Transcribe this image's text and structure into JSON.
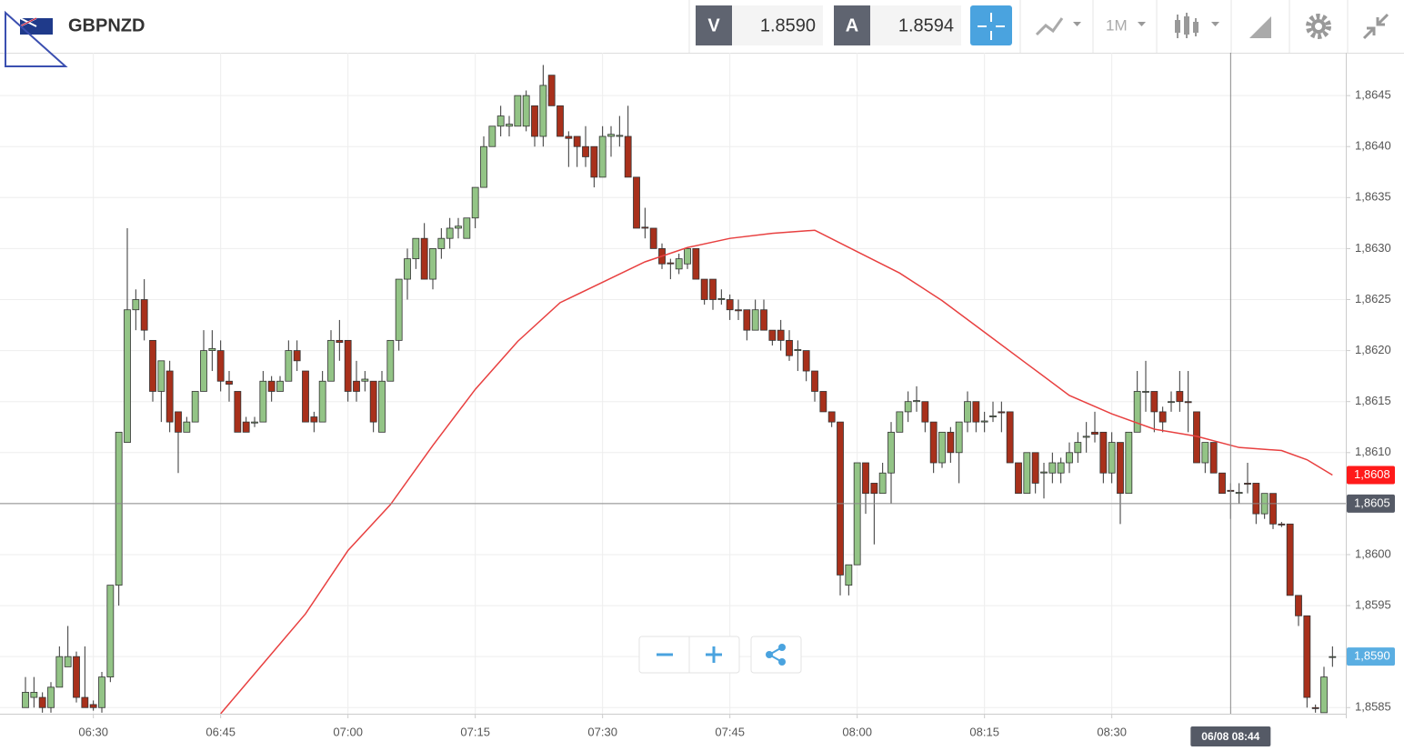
{
  "toolbar": {
    "symbol": "GBPNZD",
    "bid_label": "V",
    "bid": "1.8590",
    "ask_label": "A",
    "ask": "1.8594",
    "timeframe": "1M"
  },
  "chart_data": {
    "type": "candlestick",
    "x": [
      "06:22",
      "06:23",
      "06:24",
      "06:25",
      "06:26",
      "06:27",
      "06:28",
      "06:29",
      "06:30",
      "06:31",
      "06:32",
      "06:33",
      "06:34",
      "06:35",
      "06:36",
      "06:37",
      "06:38",
      "06:39",
      "06:40",
      "06:41",
      "06:42",
      "06:43",
      "06:44",
      "06:45",
      "06:46",
      "06:47",
      "06:48",
      "06:49",
      "06:50",
      "06:51",
      "06:52",
      "06:53",
      "06:54",
      "06:55",
      "06:56",
      "06:57",
      "06:58",
      "06:59",
      "07:00",
      "07:01",
      "07:02",
      "07:03",
      "07:04",
      "07:05",
      "07:06",
      "07:07",
      "07:08",
      "07:09",
      "07:10",
      "07:11",
      "07:12",
      "07:13",
      "07:14",
      "07:15",
      "07:16",
      "07:17",
      "07:18",
      "07:19",
      "07:20",
      "07:21",
      "07:22",
      "07:23",
      "07:24",
      "07:25",
      "07:26",
      "07:27",
      "07:28",
      "07:29",
      "07:30",
      "07:31",
      "07:32",
      "07:33",
      "07:34",
      "07:35",
      "07:36",
      "07:37",
      "07:38",
      "07:39",
      "07:40",
      "07:41",
      "07:42",
      "07:43",
      "07:44",
      "07:45",
      "07:46",
      "07:47",
      "07:48",
      "07:49",
      "07:50",
      "07:51",
      "07:52",
      "07:53",
      "07:54",
      "07:55",
      "07:56",
      "07:57",
      "07:58",
      "07:59",
      "08:00",
      "08:01",
      "08:02",
      "08:03",
      "08:04",
      "08:05",
      "08:06",
      "08:07",
      "08:08",
      "08:09",
      "08:10",
      "08:11",
      "08:12",
      "08:13",
      "08:14",
      "08:15",
      "08:16",
      "08:17",
      "08:18",
      "08:19",
      "08:20",
      "08:21",
      "08:22",
      "08:23",
      "08:24",
      "08:25",
      "08:26",
      "08:27",
      "08:28",
      "08:29",
      "08:30",
      "08:31",
      "08:32",
      "08:33",
      "08:34",
      "08:35",
      "08:36",
      "08:37",
      "08:38",
      "08:39",
      "08:40",
      "08:41",
      "08:42",
      "08:43",
      "08:44",
      "08:45",
      "08:46",
      "08:47",
      "08:48",
      "08:49",
      "08:50",
      "08:51",
      "08:52",
      "08:53",
      "08:54",
      "08:55",
      "08:56"
    ],
    "open": [
      1.8585,
      1.8586,
      1.8586,
      1.8585,
      1.8587,
      1.8589,
      1.859,
      1.8586,
      1.85853,
      1.8585,
      1.8588,
      1.8597,
      1.8611,
      1.8624,
      1.8625,
      1.8621,
      1.8616,
      1.8618,
      1.8614,
      1.8612,
      1.8613,
      1.8616,
      1.862,
      1.862,
      1.8617,
      1.8616,
      1.8613,
      1.86129,
      1.8613,
      1.8617,
      1.8616,
      1.8617,
      1.862,
      1.8618,
      1.86135,
      1.8613,
      1.8617,
      1.8621,
      1.8621,
      1.8617,
      1.8617,
      1.8617,
      1.8612,
      1.8617,
      1.8621,
      1.8627,
      1.8629,
      1.8631,
      1.8627,
      1.863,
      1.8631,
      1.8632,
      1.8631,
      1.8633,
      1.8636,
      1.864,
      1.8642,
      1.8642,
      1.8642,
      1.8642,
      1.8644,
      1.8641,
      1.8647,
      1.8644,
      1.8641,
      1.8641,
      1.864,
      1.864,
      1.8637,
      1.8641,
      1.8641,
      1.8641,
      1.8637,
      1.86321,
      1.8632,
      1.863,
      1.86286,
      1.8628,
      1.86285,
      1.863,
      1.8627,
      1.8627,
      1.8625,
      1.8625,
      1.8624,
      1.8624,
      1.8622,
      1.8624,
      1.8622,
      1.8622,
      1.8621,
      1.862,
      1.862,
      1.8618,
      1.8616,
      1.8614,
      1.8613,
      1.8597,
      1.8599,
      1.8609,
      1.8607,
      1.8606,
      1.8608,
      1.8612,
      1.8614,
      1.8615,
      1.8615,
      1.8613,
      1.8609,
      1.8612,
      1.861,
      1.8613,
      1.8615,
      1.8613,
      1.86135,
      1.8614,
      1.8614,
      1.8609,
      1.8606,
      1.861,
      1.8608,
      1.8608,
      1.8608,
      1.8609,
      1.861,
      1.86115,
      1.8612,
      1.8612,
      1.8608,
      1.8611,
      1.8606,
      1.8612,
      1.8616,
      1.8616,
      1.8614,
      1.8615,
      1.8616,
      1.8615,
      1.8614,
      1.8609,
      1.8611,
      1.8608,
      1.86063,
      1.8606,
      1.8607,
      1.8607,
      1.8604,
      1.8606,
      1.8603,
      1.8603,
      1.8596,
      1.8594,
      1.8585,
      1.85845,
      1.859
    ],
    "high": [
      1.8588,
      1.8588,
      1.85865,
      1.85875,
      1.8591,
      1.8593,
      1.85905,
      1.8591,
      1.85857,
      1.85885,
      1.8597,
      1.8612,
      1.8632,
      1.8626,
      1.8627,
      1.8621,
      1.8619,
      1.8619,
      1.8614,
      1.86135,
      1.8616,
      1.8622,
      1.8622,
      1.8621,
      1.8618,
      1.8616,
      1.86135,
      1.86135,
      1.8618,
      1.86175,
      1.86175,
      1.8621,
      1.8621,
      1.8618,
      1.8614,
      1.8618,
      1.8622,
      1.8623,
      1.8621,
      1.8619,
      1.8618,
      1.8617,
      1.8618,
      1.8621,
      1.8627,
      1.863,
      1.8631,
      1.86325,
      1.863,
      1.8632,
      1.8633,
      1.8633,
      1.8633,
      1.8636,
      1.8641,
      1.8642,
      1.8644,
      1.8643,
      1.8645,
      1.86455,
      1.8644,
      1.8648,
      1.8647,
      1.8644,
      1.86415,
      1.8641,
      1.8642,
      1.864,
      1.8642,
      1.8642,
      1.8643,
      1.8644,
      1.8637,
      1.8634,
      1.8632,
      1.86305,
      1.8629,
      1.86295,
      1.863,
      1.863,
      1.8627,
      1.8627,
      1.8626,
      1.86255,
      1.8625,
      1.8624,
      1.8625,
      1.8625,
      1.8622,
      1.8623,
      1.8622,
      1.8621,
      1.862,
      1.8618,
      1.8616,
      1.8614,
      1.8613,
      1.8599,
      1.8609,
      1.8609,
      1.8607,
      1.8609,
      1.8613,
      1.8614,
      1.8616,
      1.86165,
      1.8615,
      1.8613,
      1.8612,
      1.86125,
      1.8613,
      1.8616,
      1.8615,
      1.8614,
      1.8615,
      1.8615,
      1.8614,
      1.8609,
      1.861,
      1.861,
      1.8609,
      1.861,
      1.86095,
      1.8611,
      1.8612,
      1.8613,
      1.8614,
      1.8612,
      1.8612,
      1.8611,
      1.8612,
      1.8618,
      1.8619,
      1.8616,
      1.86145,
      1.8616,
      1.8618,
      1.8618,
      1.8614,
      1.8611,
      1.8611,
      1.8608,
      1.8607,
      1.8607,
      1.8609,
      1.8607,
      1.8606,
      1.8606,
      1.86032,
      1.8603,
      1.8596,
      1.8594,
      1.85853,
      1.8589,
      1.8591
    ],
    "low": [
      1.8585,
      1.8585,
      1.85845,
      1.85845,
      1.8587,
      1.8589,
      1.85855,
      1.8585,
      1.85847,
      1.85845,
      1.85875,
      1.8595,
      1.8611,
      1.8622,
      1.8621,
      1.8615,
      1.8613,
      1.8612,
      1.8608,
      1.8612,
      1.8613,
      1.8616,
      1.8618,
      1.8616,
      1.8615,
      1.8612,
      1.8612,
      1.86125,
      1.8613,
      1.8615,
      1.8616,
      1.8617,
      1.8618,
      1.8613,
      1.8612,
      1.8613,
      1.8617,
      1.8619,
      1.8615,
      1.8615,
      1.8616,
      1.8612,
      1.8612,
      1.8617,
      1.862,
      1.8625,
      1.8628,
      1.8627,
      1.8626,
      1.8629,
      1.863,
      1.8631,
      1.8631,
      1.8632,
      1.8636,
      1.864,
      1.8641,
      1.8641,
      1.8642,
      1.86415,
      1.864,
      1.864,
      1.8644,
      1.8641,
      1.8638,
      1.8638,
      1.8638,
      1.8636,
      1.8637,
      1.8639,
      1.864,
      1.8637,
      1.8632,
      1.8631,
      1.863,
      1.8628,
      1.8627,
      1.86275,
      1.8628,
      1.8627,
      1.86245,
      1.8624,
      1.86245,
      1.8623,
      1.8623,
      1.8621,
      1.8622,
      1.8622,
      1.86205,
      1.862,
      1.8619,
      1.8618,
      1.8617,
      1.8615,
      1.8614,
      1.86125,
      1.8596,
      1.8596,
      1.8599,
      1.8604,
      1.8601,
      1.8606,
      1.8605,
      1.8612,
      1.8613,
      1.8614,
      1.8612,
      1.8608,
      1.86085,
      1.8609,
      1.8607,
      1.8612,
      1.8612,
      1.8612,
      1.8613,
      1.8612,
      1.8609,
      1.8606,
      1.8606,
      1.8606,
      1.86055,
      1.8607,
      1.8607,
      1.8608,
      1.8609,
      1.861,
      1.8611,
      1.8607,
      1.8607,
      1.8603,
      1.8606,
      1.8612,
      1.8614,
      1.8612,
      1.8612,
      1.8614,
      1.8614,
      1.8612,
      1.8609,
      1.8608,
      1.8608,
      1.8606,
      1.86035,
      1.8605,
      1.8606,
      1.8603,
      1.86035,
      1.86025,
      1.86027,
      1.8596,
      1.8593,
      1.8585,
      1.85845,
      1.85845,
      1.8589
    ],
    "close": [
      1.85865,
      1.85865,
      1.8585,
      1.8587,
      1.859,
      1.859,
      1.8586,
      1.8585,
      1.8585,
      1.8588,
      1.8597,
      1.8612,
      1.8624,
      1.8625,
      1.8622,
      1.8616,
      1.8619,
      1.8613,
      1.8612,
      1.8613,
      1.8616,
      1.862,
      1.86202,
      1.8617,
      1.86167,
      1.8612,
      1.8612,
      1.8613,
      1.8617,
      1.8616,
      1.8617,
      1.862,
      1.8619,
      1.8613,
      1.8613,
      1.8617,
      1.8621,
      1.86208,
      1.8616,
      1.8616,
      1.86172,
      1.8613,
      1.8617,
      1.8621,
      1.8627,
      1.8629,
      1.8631,
      1.8627,
      1.863,
      1.8631,
      1.8632,
      1.86322,
      1.8633,
      1.8636,
      1.864,
      1.8642,
      1.8643,
      1.86422,
      1.8645,
      1.8645,
      1.8641,
      1.8646,
      1.8644,
      1.8641,
      1.86408,
      1.864,
      1.8639,
      1.8637,
      1.8641,
      1.86412,
      1.86411,
      1.8637,
      1.8632,
      1.8632,
      1.863,
      1.86285,
      1.86285,
      1.8629,
      1.863,
      1.8627,
      1.8625,
      1.8625,
      1.86251,
      1.8624,
      1.86239,
      1.8622,
      1.8624,
      1.8622,
      1.8621,
      1.8621,
      1.86195,
      1.86201,
      1.8618,
      1.8616,
      1.8614,
      1.8613,
      1.8598,
      1.8599,
      1.8609,
      1.8606,
      1.8606,
      1.8608,
      1.8612,
      1.8614,
      1.8615,
      1.86151,
      1.8613,
      1.8609,
      1.8612,
      1.861,
      1.8613,
      1.8615,
      1.8613,
      1.86131,
      1.86136,
      1.86139,
      1.8609,
      1.8606,
      1.861,
      1.8607,
      1.86081,
      1.8609,
      1.8609,
      1.861,
      1.8611,
      1.86116,
      1.86118,
      1.8608,
      1.8611,
      1.8606,
      1.8612,
      1.8616,
      1.8616,
      1.8614,
      1.8613,
      1.8615,
      1.8615,
      1.86149,
      1.8609,
      1.8611,
      1.8608,
      1.8606,
      1.86062,
      1.86061,
      1.86069,
      1.8604,
      1.8606,
      1.8603,
      1.86029,
      1.8596,
      1.8594,
      1.8586,
      1.85849,
      1.8588,
      1.859
    ],
    "up_color": "#93c486",
    "down_color": "#a8301b",
    "series": [
      {
        "type": "line",
        "color": "#e84040",
        "x": [
          "06:45",
          "06:50",
          "06:55",
          "07:00",
          "07:05",
          "07:10",
          "07:15",
          "07:20",
          "07:25",
          "07:30",
          "07:35",
          "07:40",
          "07:45",
          "07:50",
          "07:55",
          "08:00",
          "08:05",
          "08:10",
          "08:15",
          "08:20",
          "08:25",
          "08:30",
          "08:35",
          "08:40",
          "08:45",
          "08:50",
          "08:53",
          "08:56"
        ],
        "values": [
          1.85844,
          1.85893,
          1.85942,
          1.86004,
          1.86049,
          1.86107,
          1.86162,
          1.86209,
          1.86247,
          1.86267,
          1.86287,
          1.86301,
          1.8631,
          1.86315,
          1.86318,
          1.86297,
          1.86276,
          1.86249,
          1.86218,
          1.86187,
          1.86156,
          1.86138,
          1.86123,
          1.86116,
          1.86105,
          1.86102,
          1.86093,
          1.86078
        ]
      }
    ],
    "xlim": [
      "06:19",
      "08:58"
    ],
    "xticks": [
      "06:30",
      "06:45",
      "07:00",
      "07:15",
      "07:30",
      "07:45",
      "08:00",
      "08:15",
      "08:30"
    ],
    "ylim": [
      1.85844,
      1.86492
    ],
    "yticks": [
      {
        "value": 1.8585,
        "label": "1,8585"
      },
      {
        "value": 1.859,
        "label": "1,8590"
      },
      {
        "value": 1.8595,
        "label": "1,8595"
      },
      {
        "value": 1.86,
        "label": "1,8600"
      },
      {
        "value": 1.8605,
        "label": "1,8605"
      },
      {
        "value": 1.861,
        "label": "1,8610"
      },
      {
        "value": 1.8615,
        "label": "1,8615"
      },
      {
        "value": 1.862,
        "label": "1,8620"
      },
      {
        "value": 1.8625,
        "label": "1,8625"
      },
      {
        "value": 1.863,
        "label": "1,8630"
      },
      {
        "value": 1.8635,
        "label": "1,8635"
      },
      {
        "value": 1.864,
        "label": "1,8640"
      },
      {
        "value": 1.8645,
        "label": "1,8645"
      }
    ],
    "grid": true,
    "crosshair": {
      "x": "08:44",
      "y": 1.8605,
      "x_label": "06/08 08:44",
      "y_label": "1,8605",
      "color": "#555a66"
    },
    "price_tags": [
      {
        "value": 1.86078,
        "label": "1,8608",
        "color": "#ff1a1a"
      },
      {
        "value": 1.859,
        "label": "1,8590",
        "color": "#5aaee2"
      }
    ]
  }
}
